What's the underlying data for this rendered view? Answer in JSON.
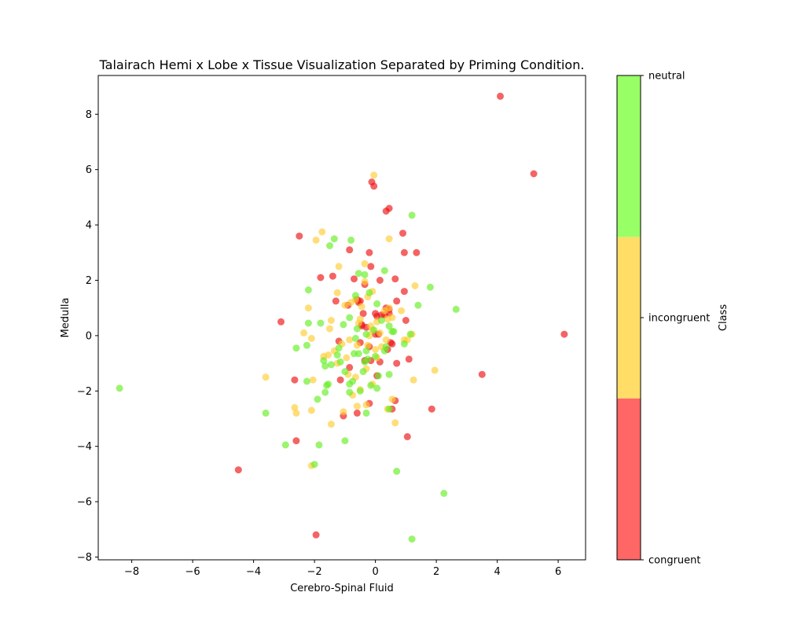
{
  "chart_data": {
    "type": "scatter",
    "title": "Talairach Hemi x Lobe x Tissue Visualization Separated by Priming Condition.",
    "xlabel": "Cerebro-Spinal Fluid",
    "ylabel": "Medulla",
    "xlim": [
      -9.1,
      6.9
    ],
    "ylim": [
      -8.1,
      9.4
    ],
    "xticks": [
      -8,
      -6,
      -4,
      -2,
      0,
      2,
      4,
      6
    ],
    "yticks": [
      -8,
      -6,
      -4,
      -2,
      0,
      2,
      4,
      6,
      8
    ],
    "grid": false,
    "colorbar": {
      "label": "Class",
      "ticks": [
        "congruent",
        "incongruent",
        "neutral"
      ],
      "colors": [
        "#ff6666",
        "#ffdd66",
        "#99ff66"
      ]
    },
    "series": [
      {
        "name": "congruent",
        "color": "#ee1111",
        "x": [
          4.1,
          5.2,
          6.2,
          3.5,
          -4.5,
          -1.95,
          -3.1,
          -2.5,
          0.35,
          0.45,
          -0.05,
          -0.12,
          0.9,
          1.35,
          0.95,
          -0.85,
          -0.2,
          -1.8,
          -1.4,
          -0.7,
          -0.35,
          0.15,
          0.05,
          0.65,
          -0.6,
          -0.55,
          -0.5,
          0.35,
          0.45,
          0.2,
          0.0,
          -0.45,
          -0.3,
          -0.4,
          0.1,
          0.55,
          0.7,
          1.1,
          0.95,
          1.0,
          -1.2,
          -0.85,
          -0.5,
          -0.2,
          -0.15,
          0.5,
          0.7,
          -0.35,
          -2.6,
          -2.65,
          -1.15,
          -1.05,
          0.55,
          1.05,
          1.85,
          -0.2,
          0.05,
          0.15,
          0.65,
          -0.6,
          -1.3,
          -0.9,
          0.4,
          0.45,
          0.3,
          -0.15,
          0.0,
          -0.45
        ],
        "y": [
          8.65,
          5.85,
          0.05,
          -1.4,
          -4.85,
          -7.2,
          0.5,
          3.6,
          4.5,
          4.6,
          5.4,
          5.55,
          3.7,
          3.0,
          3.0,
          3.1,
          3.0,
          2.1,
          2.15,
          2.05,
          1.85,
          2.0,
          0.7,
          2.05,
          1.3,
          1.2,
          1.25,
          1.0,
          0.95,
          0.75,
          0.05,
          0.35,
          0.3,
          0.8,
          0.05,
          -0.3,
          1.25,
          -0.85,
          1.6,
          0.55,
          -0.2,
          -1.15,
          -0.25,
          -0.4,
          -0.9,
          -0.25,
          -1.0,
          -0.9,
          -3.8,
          -1.6,
          -1.6,
          -2.9,
          -2.65,
          -3.65,
          -2.65,
          -2.45,
          -1.45,
          -0.95,
          -2.35,
          -2.8,
          1.25,
          1.1,
          -0.5,
          0.8,
          0.75,
          2.5,
          0.8,
          0.4
        ]
      },
      {
        "name": "incongruent",
        "color": "#ffcc33",
        "x": [
          -1.75,
          -1.95,
          0.45,
          -0.05,
          -1.2,
          -0.35,
          1.3,
          -2.2,
          -0.1,
          -1.25,
          -0.25,
          -0.65,
          -0.8,
          -0.45,
          0.45,
          1.05,
          1.2,
          -1.45,
          -1.0,
          0.05,
          -0.1,
          -0.55,
          0.3,
          0.4,
          0.55,
          1.95,
          1.25,
          0.65,
          -3.6,
          -2.65,
          -2.6,
          -2.05,
          -2.1,
          -1.45,
          -1.05,
          -0.6,
          -0.3,
          -0.1,
          0.55,
          0.4,
          -0.75,
          -0.95,
          -1.25,
          -1.55,
          -0.25,
          0.0,
          0.35,
          -0.3,
          -0.5,
          -2.35,
          -2.1,
          -1.1,
          -0.6,
          -0.85,
          -0.15,
          0.2,
          -1.5,
          -1.7,
          -1.35,
          -0.9,
          -0.65,
          0.05,
          0.95,
          0.15,
          0.85,
          -0.2,
          -0.5,
          -0.35
        ],
        "y": [
          3.75,
          3.45,
          3.5,
          5.8,
          2.5,
          2.6,
          1.8,
          1.0,
          1.6,
          1.55,
          1.4,
          1.3,
          1.2,
          1.05,
          1.0,
          -0.15,
          0.05,
          0.55,
          1.1,
          0.5,
          0.2,
          0.45,
          0.9,
          0.6,
          0.65,
          -1.25,
          -1.6,
          -3.15,
          -1.5,
          -2.6,
          -2.8,
          -1.6,
          -2.7,
          -3.2,
          -2.75,
          -2.55,
          -2.5,
          -1.75,
          -2.3,
          -2.65,
          -2.15,
          -0.8,
          -1.0,
          -0.7,
          -0.35,
          -0.5,
          -0.15,
          -1.2,
          -1.95,
          0.1,
          -0.1,
          -0.3,
          -0.35,
          -0.15,
          0.35,
          -0.4,
          0.25,
          -0.75,
          -0.55,
          -1.4,
          -1.5,
          -0.8,
          -0.15,
          0.1,
          0.9,
          0.0,
          0.6,
          1.95
        ],
        "extra_x": [
          -2.1
        ],
        "extra_y": [
          -4.7
        ]
      },
      {
        "name": "neutral",
        "color": "#66ee22",
        "x": [
          -8.4,
          -3.6,
          -2.95,
          -2.0,
          -1.85,
          -1.0,
          1.2,
          2.25,
          0.7,
          1.2,
          -1.35,
          -1.5,
          -0.8,
          -0.55,
          0.3,
          1.8,
          2.65,
          1.4,
          -0.2,
          0.05,
          -1.8,
          -2.25,
          -2.2,
          -1.6,
          -1.55,
          -1.45,
          -1.7,
          -0.85,
          -1.05,
          -0.6,
          0.2,
          0.45,
          -0.3,
          -0.65,
          -0.3,
          0.0,
          0.45,
          0.95,
          1.15,
          -2.6,
          -2.2,
          -2.25,
          -1.65,
          -1.25,
          -1.0,
          -0.85,
          -0.75,
          -0.4,
          -0.35,
          -0.15,
          0.05,
          -1.15,
          -0.7,
          -0.25,
          0.6,
          -0.5,
          0.1,
          0.3,
          -1.2,
          -0.55,
          -0.05,
          0.35,
          0.55,
          -1.9,
          -0.85,
          -0.3,
          0.45,
          -1.65
        ],
        "y": [
          -1.9,
          -2.8,
          -3.95,
          -4.65,
          -3.95,
          -3.8,
          -7.35,
          -5.7,
          -4.9,
          4.35,
          3.5,
          3.25,
          3.45,
          2.25,
          2.35,
          1.75,
          0.95,
          1.1,
          1.55,
          1.15,
          0.45,
          -1.65,
          1.65,
          -1.8,
          -1.75,
          -1.05,
          -0.9,
          0.65,
          0.4,
          0.25,
          0.55,
          0.35,
          0.05,
          -0.1,
          -0.55,
          -0.75,
          -1.4,
          -0.3,
          0.05,
          -0.45,
          0.45,
          -0.35,
          -1.1,
          -0.7,
          -1.3,
          -1.75,
          -1.65,
          -1.3,
          -0.95,
          -1.8,
          -1.9,
          -0.95,
          -0.65,
          -0.85,
          0.15,
          -2.0,
          -1.45,
          -0.55,
          -0.45,
          -0.65,
          0.2,
          -0.4,
          0.15,
          -2.3,
          -2.05,
          -2.8,
          -2.65,
          -2.05
        ],
        "extra_x": [
          -0.35,
          -0.65
        ],
        "extra_y": [
          2.2,
          1.45
        ]
      }
    ]
  }
}
